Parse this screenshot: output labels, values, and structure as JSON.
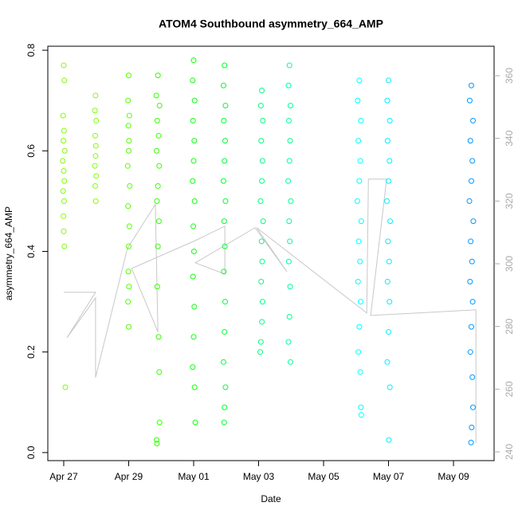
{
  "chart_data": {
    "type": "scatter",
    "title": "ATOM4 Southbound asymmetry_664_AMP",
    "xlabel": "Date",
    "ylabel": "asymmetry_664_AMP",
    "xlim": [
      -0.49,
      13.25
    ],
    "ylim": [
      -0.016,
      0.808
    ],
    "y2lim": [
      237.2,
      369.4
    ],
    "xticks": [
      {
        "value": 0,
        "label": "Apr 27"
      },
      {
        "value": 2,
        "label": "Apr 29"
      },
      {
        "value": 4,
        "label": "May 01"
      },
      {
        "value": 6,
        "label": "May 03"
      },
      {
        "value": 8,
        "label": "May 05"
      },
      {
        "value": 10,
        "label": "May 07"
      },
      {
        "value": 12,
        "label": "May 09"
      }
    ],
    "yticks": [
      {
        "value": 0,
        "label": "0.0"
      },
      0.2,
      0.4,
      0.6,
      0.8
    ],
    "y2ticks": [
      240,
      260,
      280,
      300,
      320,
      340,
      360
    ],
    "series": [
      {
        "axis": "y2",
        "kind": "line",
        "color": "#c8c8c8",
        "x": [
          0,
          0.98,
          0.1,
          0.98,
          0.98,
          1.96,
          2.82,
          2.9,
          2.09,
          4.05,
          4.96,
          4.96,
          4.05,
          5.89,
          6.87,
          5.94,
          9.33,
          9.38,
          9.94,
          9.45,
          12.69,
          12.69
        ],
        "values": [
          290.9,
          290.9,
          276.4,
          289.1,
          263.7,
          304.9,
          318.9,
          278.2,
          298.5,
          307.4,
          312.0,
          296.7,
          300.3,
          311.5,
          297.5,
          311.5,
          284.3,
          327.0,
          327.0,
          283.5,
          285.3,
          242.8
        ]
      },
      {
        "color": "#80ff00",
        "x": [
          0,
          0.02,
          -0.02,
          0.01,
          -0.01,
          0.03,
          -0.03,
          0,
          0.02,
          -0.02,
          0.01,
          -0.01,
          0,
          0.02,
          0.05
        ],
        "values": [
          0.77,
          0.74,
          0.67,
          0.64,
          0.62,
          0.6,
          0.58,
          0.56,
          0.54,
          0.52,
          0.5,
          0.47,
          0.44,
          0.41,
          0.13
        ]
      },
      {
        "color": "#80ff00",
        "x": [
          0.98,
          0.96,
          1.0,
          0.97,
          0.99,
          0.98,
          0.96,
          1.0,
          0.97,
          0.99
        ],
        "values": [
          0.71,
          0.68,
          0.66,
          0.63,
          0.61,
          0.59,
          0.57,
          0.55,
          0.53,
          0.5
        ]
      },
      {
        "color": "#55ff00",
        "x": [
          2.0,
          1.98,
          2.02,
          1.99,
          2.01,
          2.0,
          1.97,
          2.03,
          1.98,
          2.02,
          2.0,
          1.99,
          2.01,
          1.98,
          2.0
        ],
        "values": [
          0.75,
          0.7,
          0.67,
          0.65,
          0.62,
          0.6,
          0.57,
          0.53,
          0.49,
          0.45,
          0.41,
          0.36,
          0.33,
          0.3,
          0.25
        ]
      },
      {
        "color": "#33ff00",
        "x": [
          2.9,
          2.85,
          2.95,
          2.88,
          2.92,
          2.86,
          2.94,
          2.9,
          2.87,
          2.93,
          2.9,
          2.88,
          2.92,
          2.94,
          2.95,
          2.86,
          2.87
        ],
        "values": [
          0.75,
          0.71,
          0.69,
          0.66,
          0.63,
          0.6,
          0.57,
          0.53,
          0.5,
          0.46,
          0.41,
          0.33,
          0.23,
          0.16,
          0.06,
          0.025,
          0.018
        ]
      },
      {
        "color": "#10ff10",
        "x": [
          4.0,
          3.97,
          4.03,
          3.98,
          4.02,
          4.0,
          3.97,
          4.03,
          3.99,
          4.01,
          3.98,
          4.02,
          4.0,
          3.97,
          4.03,
          4.05
        ],
        "values": [
          0.78,
          0.74,
          0.7,
          0.66,
          0.62,
          0.58,
          0.54,
          0.5,
          0.45,
          0.4,
          0.35,
          0.29,
          0.23,
          0.17,
          0.13,
          0.06
        ]
      },
      {
        "color": "#00ff33",
        "x": [
          4.95,
          4.92,
          4.98,
          4.93,
          4.97,
          4.95,
          4.92,
          4.98,
          4.94,
          4.96,
          4.93,
          4.97,
          4.95,
          4.92,
          4.98,
          4.95,
          4.94
        ],
        "values": [
          0.77,
          0.73,
          0.69,
          0.66,
          0.62,
          0.58,
          0.54,
          0.5,
          0.46,
          0.41,
          0.36,
          0.3,
          0.24,
          0.18,
          0.13,
          0.09,
          0.06
        ]
      },
      {
        "color": "#00ff80",
        "x": [
          6.1,
          6.07,
          6.13,
          6.08,
          6.12,
          6.1,
          6.06,
          6.14,
          6.09,
          6.11,
          6.08,
          6.12,
          6.1,
          6.07,
          6.05
        ],
        "values": [
          0.72,
          0.69,
          0.66,
          0.62,
          0.58,
          0.54,
          0.5,
          0.46,
          0.42,
          0.38,
          0.34,
          0.3,
          0.26,
          0.22,
          0.2
        ]
      },
      {
        "color": "#00ff99",
        "x": [
          6.95,
          6.92,
          6.98,
          6.93,
          6.97,
          6.95,
          6.91,
          6.99,
          6.94,
          6.96,
          6.93,
          6.97,
          6.95,
          6.92,
          6.98
        ],
        "values": [
          0.77,
          0.73,
          0.69,
          0.66,
          0.62,
          0.58,
          0.54,
          0.5,
          0.46,
          0.42,
          0.38,
          0.33,
          0.27,
          0.22,
          0.18
        ]
      },
      {
        "color": "#00ffff",
        "x": [
          9.1,
          9.05,
          9.15,
          9.07,
          9.13,
          9.1,
          9.04,
          9.16,
          9.08,
          9.12,
          9.06,
          9.14,
          9.1,
          9.07,
          9.13,
          9.15,
          9.16
        ],
        "values": [
          0.74,
          0.7,
          0.66,
          0.62,
          0.58,
          0.54,
          0.5,
          0.46,
          0.42,
          0.38,
          0.34,
          0.3,
          0.25,
          0.2,
          0.16,
          0.09,
          0.075
        ]
      },
      {
        "color": "#00f0ff",
        "x": [
          10.0,
          9.96,
          10.04,
          9.97,
          10.03,
          10.0,
          9.95,
          10.05,
          9.98,
          10.02,
          9.97,
          10.03,
          10.0,
          9.96,
          10.04,
          10.01
        ],
        "values": [
          0.74,
          0.7,
          0.66,
          0.62,
          0.58,
          0.54,
          0.5,
          0.46,
          0.42,
          0.38,
          0.34,
          0.3,
          0.24,
          0.18,
          0.13,
          0.025
        ]
      },
      {
        "color": "#0099ff",
        "x": [
          12.55,
          12.5,
          12.6,
          12.52,
          12.58,
          12.55,
          12.49,
          12.61,
          12.53,
          12.57,
          12.51,
          12.59,
          12.55,
          12.52,
          12.58,
          12.6,
          12.56,
          12.54
        ],
        "values": [
          0.73,
          0.7,
          0.66,
          0.62,
          0.58,
          0.54,
          0.5,
          0.46,
          0.42,
          0.38,
          0.34,
          0.3,
          0.25,
          0.2,
          0.15,
          0.09,
          0.05,
          0.02
        ]
      }
    ]
  }
}
